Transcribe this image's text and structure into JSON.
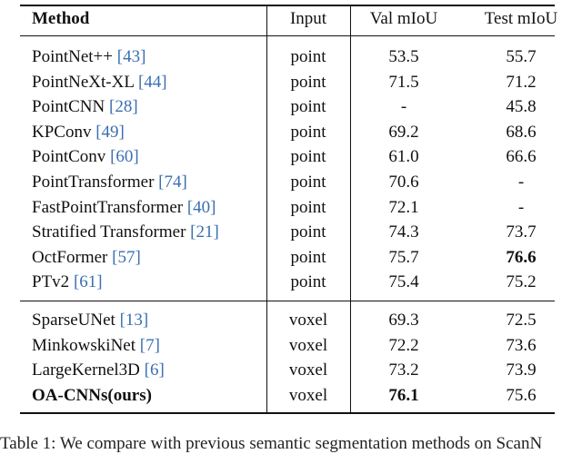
{
  "table": {
    "header": [
      "Method",
      "Input",
      "Val mIoU",
      "Test mIoU"
    ],
    "groups": [
      {
        "rows": [
          {
            "method": "PointNet++",
            "ref": "[43]",
            "input": "point",
            "val": "53.5",
            "test": "55.7"
          },
          {
            "method": "PointNeXt-XL",
            "ref": "[44]",
            "input": "point",
            "val": "71.5",
            "test": "71.2"
          },
          {
            "method": "PointCNN",
            "ref": "[28]",
            "input": "point",
            "val": "-",
            "test": "45.8"
          },
          {
            "method": "KPConv",
            "ref": "[49]",
            "input": "point",
            "val": "69.2",
            "test": "68.6"
          },
          {
            "method": "PointConv",
            "ref": "[60]",
            "input": "point",
            "val": "61.0",
            "test": "66.6"
          },
          {
            "method": "PointTransformer",
            "ref": "[74]",
            "input": "point",
            "val": "70.6",
            "test": "-"
          },
          {
            "method": "FastPointTransformer",
            "ref": "[40]",
            "input": "point",
            "val": "72.1",
            "test": "-"
          },
          {
            "method": "Stratified Transformer",
            "ref": "[21]",
            "input": "point",
            "val": "74.3",
            "test": "73.7"
          },
          {
            "method": "OctFormer",
            "ref": "[57]",
            "input": "point",
            "val": "75.7",
            "test": "76.6"
          },
          {
            "method": "PTv2",
            "ref": "[61]",
            "input": "point",
            "val": "75.4",
            "test": "75.2"
          }
        ]
      },
      {
        "rows": [
          {
            "method": "SparseUNet",
            "ref": "[13]",
            "input": "voxel",
            "val": "69.3",
            "test": "72.5"
          },
          {
            "method": "MinkowskiNet",
            "ref": "[7]",
            "input": "voxel",
            "val": "72.2",
            "test": "73.6"
          },
          {
            "method": "LargeKernel3D",
            "ref": "[6]",
            "input": "voxel",
            "val": "73.2",
            "test": "73.9"
          },
          {
            "method": "OA-CNNs(ours)",
            "input": "voxel",
            "val": "76.1",
            "test": "75.6"
          }
        ]
      }
    ],
    "caption": "Table 1: We compare with previous semantic segmentation methods on ScanN"
  }
}
